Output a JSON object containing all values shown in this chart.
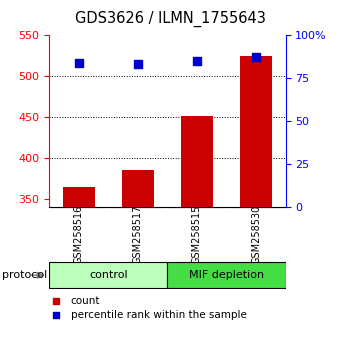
{
  "title": "GDS3626 / ILMN_1755643",
  "samples": [
    "GSM258516",
    "GSM258517",
    "GSM258515",
    "GSM258530"
  ],
  "counts": [
    365,
    385,
    452,
    525
  ],
  "percentiles": [
    516,
    515,
    519,
    524
  ],
  "ylim_left": [
    340,
    550
  ],
  "ylim_right": [
    0,
    100
  ],
  "yticks_left": [
    350,
    400,
    450,
    500,
    550
  ],
  "yticks_right": [
    0,
    25,
    50,
    75,
    100
  ],
  "bar_color": "#cc0000",
  "dot_color": "#0000cc",
  "bar_width": 0.55,
  "protocol_groups": [
    {
      "label": "control",
      "indices": [
        0,
        1
      ],
      "color": "#bbffbb"
    },
    {
      "label": "MIF depletion",
      "indices": [
        2,
        3
      ],
      "color": "#44dd44"
    }
  ],
  "protocol_label": "protocol",
  "legend_items": [
    {
      "label": "count",
      "color": "#cc0000"
    },
    {
      "label": "percentile rank within the sample",
      "color": "#0000cc"
    }
  ],
  "background_color": "#ffffff",
  "plot_bg_color": "#ffffff",
  "sample_box_color": "#cccccc"
}
